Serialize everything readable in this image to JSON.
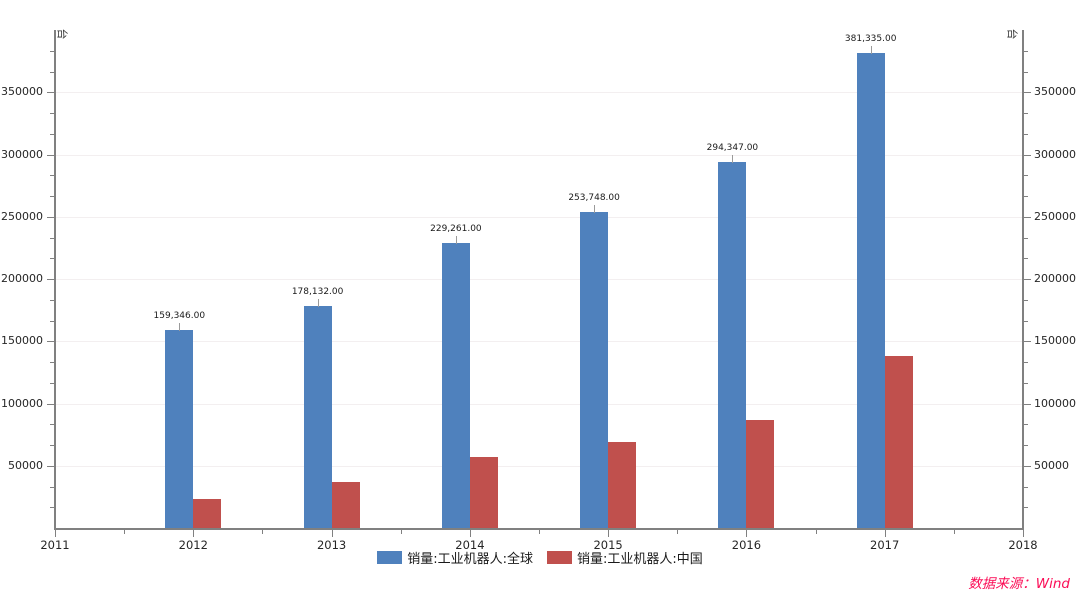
{
  "chart_data": {
    "type": "bar",
    "title": "",
    "unit_label": "台",
    "categories": [
      2012,
      2013,
      2014,
      2015,
      2016,
      2017
    ],
    "series": [
      {
        "name": "销量:工业机器人:全球",
        "color": "#4F81BD",
        "values": [
          159346,
          178132,
          229261,
          253748,
          294347,
          381335
        ],
        "labels": [
          "159,346.00",
          "178,132.00",
          "229,261.00",
          "253,748.00",
          "294,347.00",
          "381,335.00"
        ]
      },
      {
        "name": "销量:工业机器人:中国",
        "color": "#C0504D",
        "values": [
          23000,
          37000,
          57000,
          69000,
          87000,
          138000
        ],
        "labels": []
      }
    ],
    "x_axis": {
      "start": 2011,
      "end": 2018,
      "tick_labels": [
        "2011",
        "2012",
        "2013",
        "2014",
        "2015",
        "2016",
        "2017",
        "2018"
      ]
    },
    "y_axis": {
      "min": 0,
      "max": 400000,
      "tick_interval": 50000,
      "minor_divisions_per_major": 3,
      "tick_labels": [
        "50000",
        "100000",
        "150000",
        "200000",
        "250000",
        "300000",
        "350000"
      ]
    },
    "grid": true,
    "legend_position": "bottom",
    "source_note": "数据来源：Wind"
  },
  "styles": {
    "axis_color": "#808080",
    "grid_color": "#f3eff0",
    "text_color": "#262626",
    "source_color": "#fb0d56",
    "background": "#ffffff"
  }
}
